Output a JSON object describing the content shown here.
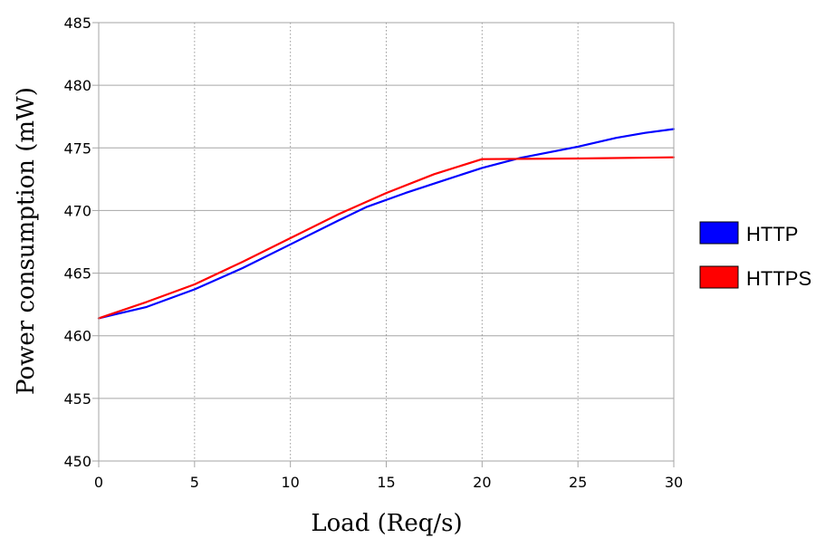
{
  "chart_data": {
    "type": "line",
    "title": "",
    "xlabel": "Load (Req/s)",
    "ylabel": "Power consumption (mW)",
    "xlim": [
      0,
      30
    ],
    "ylim": [
      450,
      485
    ],
    "xticks": [
      "0",
      "5",
      "10",
      "15",
      "20",
      "25",
      "30"
    ],
    "yticks": [
      "450",
      "455",
      "460",
      "465",
      "470",
      "475",
      "480",
      "485"
    ],
    "grid": {
      "x": "dotted",
      "y": "solid"
    },
    "legend_position": "right",
    "series": [
      {
        "name": "HTTP",
        "color": "#0000ff",
        "x": [
          0,
          2.5,
          5,
          7.5,
          10,
          12.5,
          14,
          16,
          18,
          20,
          22,
          25,
          27,
          28.5,
          30
        ],
        "y": [
          461.4,
          462.3,
          463.7,
          465.4,
          467.3,
          469.2,
          470.3,
          471.4,
          472.4,
          473.4,
          474.2,
          475.1,
          475.8,
          476.2,
          476.5
        ]
      },
      {
        "name": "HTTPS",
        "color": "#ff0000",
        "x": [
          0,
          2.5,
          5,
          7.5,
          10,
          12.5,
          15,
          17.5,
          20,
          25,
          30
        ],
        "y": [
          461.4,
          462.7,
          464.1,
          465.9,
          467.8,
          469.7,
          471.4,
          472.9,
          474.1,
          474.15,
          474.25
        ]
      }
    ]
  }
}
